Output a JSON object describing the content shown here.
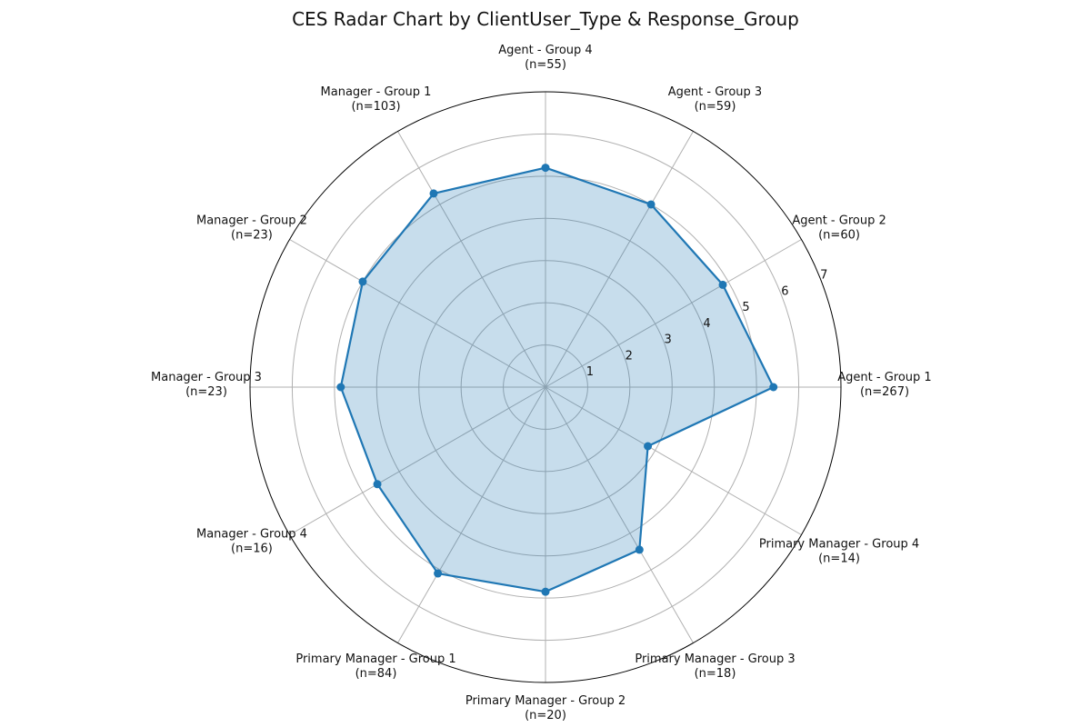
{
  "chart_data": {
    "type": "radar",
    "title": "CES Radar Chart by ClientUser_Type & Response_Group",
    "categories": [
      "Agent - Group 1",
      "Agent - Group 2",
      "Agent - Group 3",
      "Agent - Group 4",
      "Manager - Group 1",
      "Manager - Group 2",
      "Manager - Group 3",
      "Manager - Group 4",
      "Primary Manager - Group 1",
      "Primary Manager - Group 2",
      "Primary Manager - Group 3",
      "Primary Manager - Group 4"
    ],
    "counts": [
      "(n=267)",
      "(n=60)",
      "(n=59)",
      "(n=55)",
      "(n=103)",
      "(n=23)",
      "(n=23)",
      "(n=16)",
      "(n=84)",
      "(n=20)",
      "(n=18)",
      "(n=14)"
    ],
    "series": [
      {
        "values": [
          5.4,
          4.85,
          5.0,
          5.2,
          5.3,
          5.0,
          4.85,
          4.6,
          5.1,
          4.85,
          4.45,
          2.8
        ]
      }
    ],
    "rlim": [
      0,
      7
    ],
    "r_ticks": [
      1,
      2,
      3,
      4,
      5,
      6,
      7
    ],
    "grid": true,
    "colors": {
      "line": "#1f77b4",
      "fill": "#1f77b4",
      "grid": "#b0b0b0",
      "outer": "#000000"
    }
  }
}
